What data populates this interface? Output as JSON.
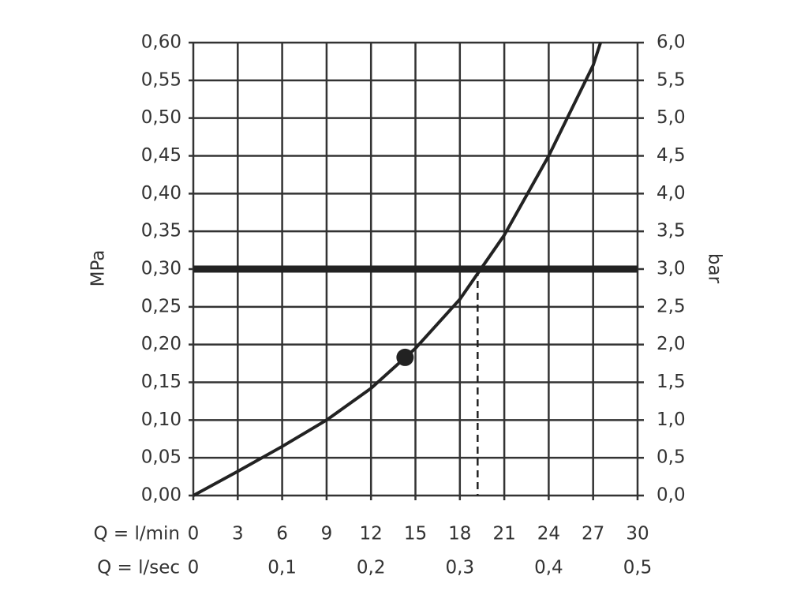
{
  "chart_data": {
    "type": "line",
    "xlabel": "Q = l/min",
    "x2label": "Q = l/sec",
    "ylabel": "MPa",
    "y2label": "bar",
    "x": [
      0,
      3,
      6,
      9,
      12,
      15,
      18,
      21,
      24,
      27,
      27.5
    ],
    "values": [
      0,
      0.032,
      0.065,
      0.1,
      0.142,
      0.195,
      0.26,
      0.345,
      0.45,
      0.57,
      0.6
    ],
    "color": "#222222",
    "xlim": [
      0,
      30
    ],
    "xticks": [
      0,
      3,
      6,
      9,
      12,
      15,
      18,
      21,
      24,
      27,
      30
    ],
    "x2lim": [
      0,
      0.5
    ],
    "x2ticks": [
      0,
      {
        "value": 0.1,
        "label": "0,1"
      },
      {
        "value": 0.2,
        "label": "0,2"
      },
      {
        "value": 0.3,
        "label": "0,3"
      },
      {
        "value": 0.4,
        "label": "0,4"
      },
      {
        "value": 0.5,
        "label": "0,5"
      }
    ],
    "ylim": [
      0,
      0.6
    ],
    "yticks": [
      {
        "value": 0,
        "label": "0,00"
      },
      {
        "value": 0.05,
        "label": "0,05"
      },
      {
        "value": 0.1,
        "label": "0,10"
      },
      {
        "value": 0.15,
        "label": "0,15"
      },
      {
        "value": 0.2,
        "label": "0,20"
      },
      {
        "value": 0.25,
        "label": "0,25"
      },
      {
        "value": 0.3,
        "label": "0,30"
      },
      {
        "value": 0.35,
        "label": "0,35"
      },
      {
        "value": 0.4,
        "label": "0,40"
      },
      {
        "value": 0.45,
        "label": "0,45"
      },
      {
        "value": 0.5,
        "label": "0,50"
      },
      {
        "value": 0.55,
        "label": "0,55"
      },
      {
        "value": 0.6,
        "label": "0,60"
      }
    ],
    "y2lim": [
      0,
      6
    ],
    "y2ticks": [
      {
        "value": 0,
        "label": "0,0"
      },
      {
        "value": 0.5,
        "label": "0,5"
      },
      {
        "value": 1,
        "label": "1,0"
      },
      {
        "value": 1.5,
        "label": "1,5"
      },
      {
        "value": 2,
        "label": "2,0"
      },
      {
        "value": 2.5,
        "label": "2,5"
      },
      {
        "value": 3,
        "label": "3,0"
      },
      {
        "value": 3.5,
        "label": "3,5"
      },
      {
        "value": 4,
        "label": "4,0"
      },
      {
        "value": 4.5,
        "label": "4,5"
      },
      {
        "value": 5,
        "label": "5,0"
      },
      {
        "value": 5.5,
        "label": "5,5"
      },
      {
        "value": 6,
        "label": "6,0"
      }
    ],
    "grid": true,
    "reference_y": 0.3,
    "reference_x": 19.2,
    "marker": {
      "x": 14.3,
      "y": 0.183
    }
  }
}
